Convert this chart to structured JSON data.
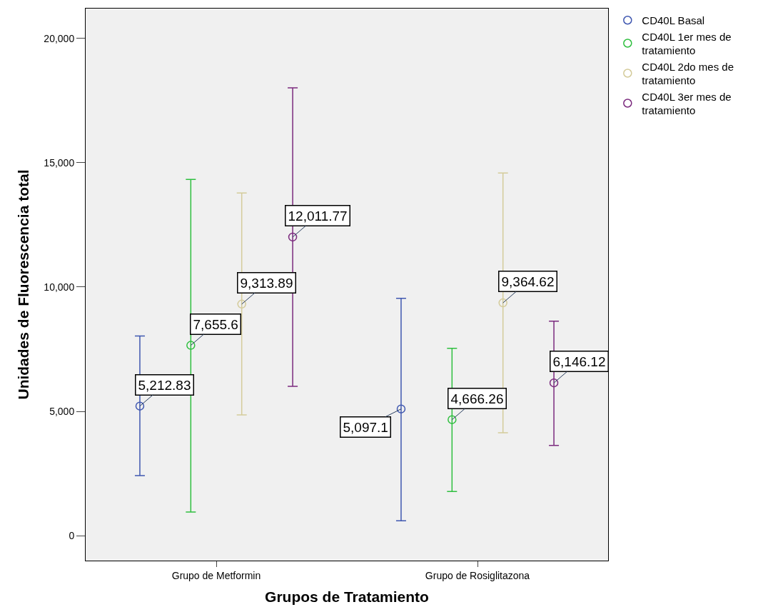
{
  "chart_data": {
    "type": "scatter",
    "xlabel": "Grupos de Tratamiento",
    "ylabel": "Unidades de Fluorescencia total",
    "categories": [
      "Grupo de Metformin",
      "Grupo de Rosiglitazona"
    ],
    "series": [
      {
        "name": "CD40L Basal",
        "color": "#3f57b0",
        "values": [
          5212.83,
          5097.1
        ],
        "errors": [
          [
            2420,
            8030
          ],
          [
            600,
            9550
          ]
        ],
        "value_labels": [
          "5,212.83",
          "5,097.1"
        ]
      },
      {
        "name": "CD40L 1er mes de tratamiento",
        "color": "#2fbf3f",
        "values": [
          7655.6,
          4666.26
        ],
        "errors": [
          [
            950,
            14330
          ],
          [
            1780,
            7540
          ]
        ],
        "value_labels": [
          "7,655.6",
          "4,666.26"
        ]
      },
      {
        "name": "CD40L 2do mes de tratamiento",
        "color": "#d4cb9a",
        "values": [
          9313.89,
          9364.62
        ],
        "errors": [
          [
            4860,
            13780
          ],
          [
            4140,
            14590
          ]
        ],
        "value_labels": [
          "9,313.89",
          "9,364.62"
        ]
      },
      {
        "name": "CD40L 3er mes de tratamiento",
        "color": "#7b2a7e",
        "values": [
          12011.77,
          6146.12
        ],
        "errors": [
          [
            6010,
            18010
          ],
          [
            3630,
            8630
          ]
        ],
        "value_labels": [
          "12,011.77",
          "6,146.12"
        ]
      }
    ],
    "ylim": [
      -1000,
      21200
    ],
    "yticks": [
      0,
      {
        "value": 5000,
        "label": "5,000"
      },
      {
        "value": 10000,
        "label": "10,000"
      },
      {
        "value": 15000,
        "label": "15,000"
      },
      {
        "value": 20000,
        "label": "20,000"
      }
    ],
    "grid": false,
    "legend": "top right",
    "marker": "circle"
  }
}
